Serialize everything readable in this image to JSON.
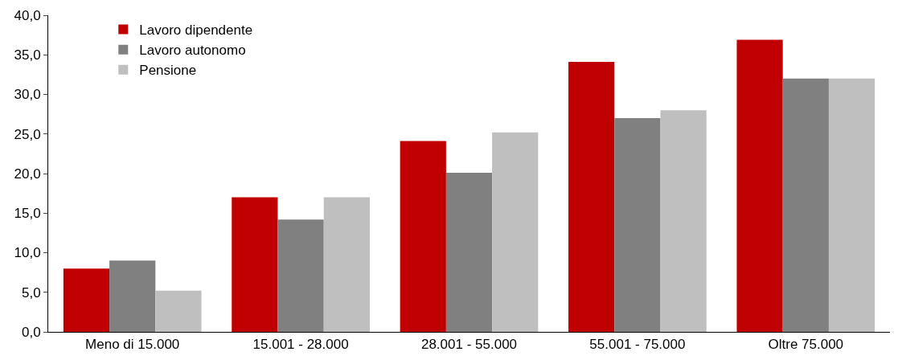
{
  "chart_data": {
    "type": "bar",
    "categories": [
      "Meno di 15.000",
      "15.001 - 28.000",
      "28.001 - 55.000",
      "55.001 - 75.000",
      "Oltre 75.000"
    ],
    "series": [
      {
        "name": "Lavoro dipendente",
        "color": "#c00000",
        "values": [
          8.0,
          17.0,
          24.1,
          34.1,
          36.9
        ]
      },
      {
        "name": "Lavoro autonomo",
        "color": "#808080",
        "values": [
          9.0,
          14.2,
          20.1,
          27.0,
          32.0
        ]
      },
      {
        "name": "Pensione",
        "color": "#bfbfbf",
        "values": [
          5.2,
          17.0,
          25.2,
          28.0,
          32.0
        ]
      }
    ],
    "ylim": [
      0,
      40
    ],
    "yticks": [
      {
        "value": 0,
        "label": "0,0"
      },
      {
        "value": 5,
        "label": "5,0"
      },
      {
        "value": 10,
        "label": "10,0"
      },
      {
        "value": 15,
        "label": "15,0"
      },
      {
        "value": 20,
        "label": "20,0"
      },
      {
        "value": 25,
        "label": "25,0"
      },
      {
        "value": 30,
        "label": "30,0"
      },
      {
        "value": 35,
        "label": "35,0"
      },
      {
        "value": 40,
        "label": "40,0"
      }
    ],
    "legend": "top left"
  }
}
